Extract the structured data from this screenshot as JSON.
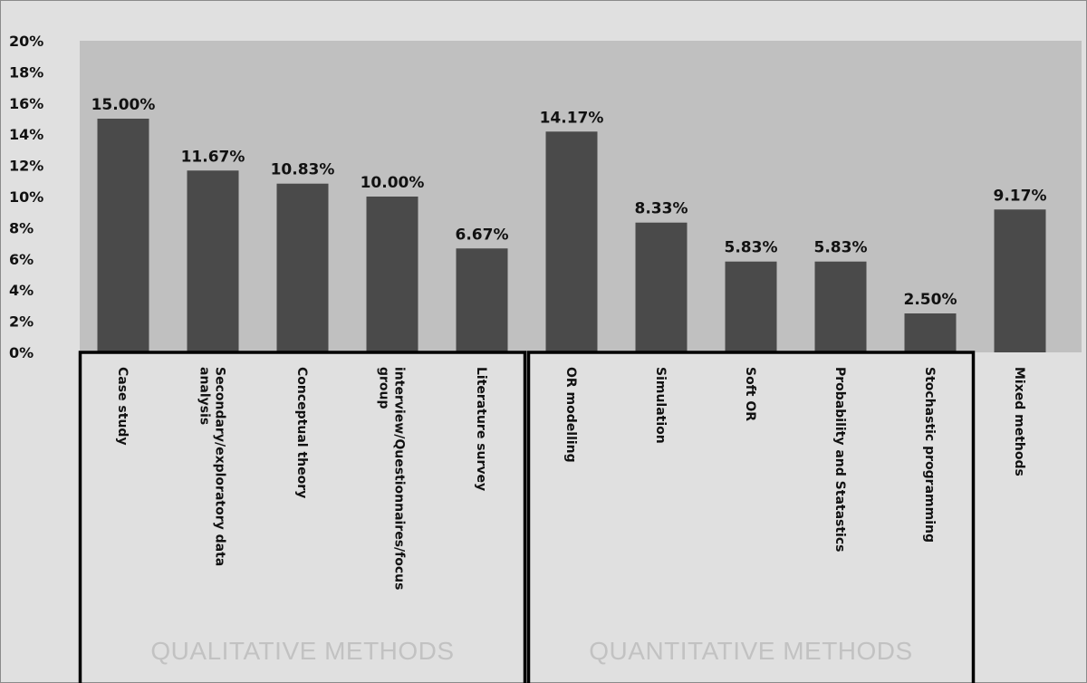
{
  "chart_data": {
    "type": "bar",
    "categories": [
      [
        "Case study"
      ],
      [
        "Secondary/exploratory data",
        "analysis"
      ],
      [
        "Conceptual theory"
      ],
      [
        "interview/Questionnaires/focus",
        "group"
      ],
      [
        "Literature survey"
      ],
      [
        "OR  modelling"
      ],
      [
        "Simulation"
      ],
      [
        "Soft OR"
      ],
      [
        "Probability and Statastics"
      ],
      [
        "Stochastic programming"
      ],
      [
        "Mixed methods"
      ]
    ],
    "values": [
      15.0,
      11.67,
      10.83,
      10.0,
      6.67,
      14.17,
      8.33,
      5.83,
      5.83,
      2.5,
      9.17
    ],
    "data_labels": [
      "15.00%",
      "11.67%",
      "10.83%",
      "10.00%",
      "6.67%",
      "14.17%",
      "8.33%",
      "5.83%",
      "5.83%",
      "2.50%",
      "9.17%"
    ],
    "ylim": [
      0,
      20
    ],
    "yticks": [
      0,
      2,
      4,
      6,
      8,
      10,
      12,
      14,
      16,
      18,
      20
    ],
    "ytick_labels": [
      "0%",
      "2%",
      "4%",
      "6%",
      "8%",
      "10%",
      "12%",
      "14%",
      "16%",
      "18%",
      "20%"
    ],
    "groups": [
      {
        "label": "QUALITATIVE METHODS",
        "start": 0,
        "end": 4
      },
      {
        "label": "QUANTITATIVE METHODS",
        "start": 5,
        "end": 9
      }
    ],
    "colors": {
      "bar": "#4a4a4a",
      "plot_bg": "#c0c0c0",
      "page_bg": "#e0e0e0",
      "group_text": "#c2c2c2"
    },
    "grid": false,
    "legend": "none"
  }
}
